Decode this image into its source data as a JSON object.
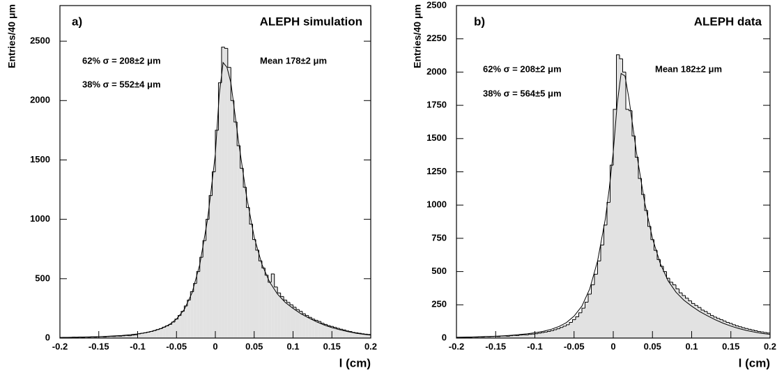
{
  "chart_data": [
    {
      "type": "histogram",
      "label": "a)",
      "title": "ALEPH simulation",
      "ylabel": "Entries/40 μm",
      "xlabel": "l (cm)",
      "annotations": [
        "62%  σ = 208±2 μm",
        "38%  σ = 552±4 μm",
        "Mean 178±2 μm"
      ],
      "color": "#e2e2e2",
      "xlim": [
        -0.2,
        0.2
      ],
      "xticks": [
        -0.2,
        -0.15,
        -0.1,
        -0.05,
        0,
        0.05,
        0.1,
        0.15,
        0.2
      ],
      "ylim": [
        0,
        2800
      ],
      "yticks": [
        0,
        500,
        1000,
        1500,
        2000,
        2500
      ],
      "bins": [
        -0.2,
        -0.196,
        -0.192,
        -0.188,
        -0.184,
        -0.18,
        -0.176,
        -0.172,
        -0.168,
        -0.164,
        -0.16,
        -0.156,
        -0.152,
        -0.148,
        -0.144,
        -0.14,
        -0.136,
        -0.132,
        -0.128,
        -0.124,
        -0.12,
        -0.116,
        -0.112,
        -0.108,
        -0.104,
        -0.1,
        -0.096,
        -0.092,
        -0.088,
        -0.084,
        -0.08,
        -0.076,
        -0.072,
        -0.068,
        -0.064,
        -0.06,
        -0.056,
        -0.052,
        -0.048,
        -0.044,
        -0.04,
        -0.036,
        -0.032,
        -0.028,
        -0.024,
        -0.02,
        -0.016,
        -0.012,
        -0.008,
        -0.004,
        0,
        0.004,
        0.008,
        0.012,
        0.016,
        0.02,
        0.024,
        0.028,
        0.032,
        0.036,
        0.04,
        0.044,
        0.048,
        0.052,
        0.056,
        0.06,
        0.064,
        0.068,
        0.072,
        0.076,
        0.08,
        0.084,
        0.088,
        0.092,
        0.096,
        0.1,
        0.104,
        0.108,
        0.112,
        0.116,
        0.12,
        0.124,
        0.128,
        0.132,
        0.136,
        0.14,
        0.144,
        0.148,
        0.152,
        0.156,
        0.16,
        0.164,
        0.168,
        0.172,
        0.176,
        0.18,
        0.184,
        0.188,
        0.192,
        0.196,
        0.2
      ],
      "values": [
        4,
        6,
        3,
        5,
        7,
        5,
        8,
        6,
        9,
        7,
        10,
        8,
        11,
        12,
        10,
        13,
        15,
        14,
        17,
        16,
        19,
        22,
        20,
        25,
        28,
        36,
        40,
        45,
        50,
        56,
        63,
        72,
        80,
        92,
        103,
        115,
        135,
        160,
        190,
        225,
        270,
        320,
        390,
        460,
        560,
        680,
        820,
        1000,
        1200,
        1400,
        1750,
        2150,
        2450,
        2440,
        2280,
        2000,
        1820,
        1620,
        1430,
        1270,
        1100,
        960,
        830,
        740,
        650,
        590,
        530,
        470,
        540,
        430,
        380,
        350,
        320,
        300,
        280,
        260,
        240,
        225,
        205,
        190,
        175,
        160,
        150,
        140,
        125,
        115,
        105,
        98,
        90,
        82,
        75,
        68,
        60,
        55,
        48,
        44,
        40,
        36,
        33,
        30
      ],
      "fit_x": [
        -0.2,
        -0.19,
        -0.18,
        -0.17,
        -0.16,
        -0.15,
        -0.14,
        -0.13,
        -0.12,
        -0.11,
        -0.1,
        -0.09,
        -0.08,
        -0.07,
        -0.06,
        -0.05,
        -0.04,
        -0.03,
        -0.02,
        -0.01,
        -0.005,
        0,
        0.005,
        0.01,
        0.015,
        0.02,
        0.03,
        0.04,
        0.05,
        0.06,
        0.07,
        0.08,
        0.09,
        0.1,
        0.11,
        0.12,
        0.13,
        0.14,
        0.15,
        0.16,
        0.17,
        0.18,
        0.19,
        0.2
      ],
      "fit_values": [
        5,
        6,
        7,
        9,
        10,
        12,
        15,
        18,
        22,
        28,
        35,
        45,
        60,
        80,
        110,
        160,
        240,
        380,
        620,
        1000,
        1270,
        1550,
        2050,
        2320,
        2280,
        2150,
        1650,
        1200,
        850,
        620,
        470,
        370,
        300,
        250,
        205,
        170,
        138,
        110,
        88,
        70,
        55,
        42,
        32,
        25
      ]
    },
    {
      "type": "histogram",
      "label": "b)",
      "title": "ALEPH data",
      "ylabel": "Entries/40 μm",
      "xlabel": "l (cm)",
      "annotations": [
        "62%  σ = 208±2 μm",
        "38%  σ = 564±5 μm",
        "Mean 182±2 μm"
      ],
      "color": "#e2e2e2",
      "xlim": [
        -0.2,
        0.2
      ],
      "xticks": [
        -0.2,
        -0.15,
        -0.1,
        -0.05,
        0,
        0.05,
        0.1,
        0.15,
        0.2
      ],
      "ylim": [
        0,
        2500
      ],
      "yticks": [
        0,
        250,
        500,
        750,
        1000,
        1250,
        1500,
        1750,
        2000,
        2250,
        2500
      ],
      "bins": [
        -0.2,
        -0.196,
        -0.192,
        -0.188,
        -0.184,
        -0.18,
        -0.176,
        -0.172,
        -0.168,
        -0.164,
        -0.16,
        -0.156,
        -0.152,
        -0.148,
        -0.144,
        -0.14,
        -0.136,
        -0.132,
        -0.128,
        -0.124,
        -0.12,
        -0.116,
        -0.112,
        -0.108,
        -0.104,
        -0.1,
        -0.096,
        -0.092,
        -0.088,
        -0.084,
        -0.08,
        -0.076,
        -0.072,
        -0.068,
        -0.064,
        -0.06,
        -0.056,
        -0.052,
        -0.048,
        -0.044,
        -0.04,
        -0.036,
        -0.032,
        -0.028,
        -0.024,
        -0.02,
        -0.016,
        -0.012,
        -0.008,
        -0.004,
        0,
        0.004,
        0.008,
        0.012,
        0.016,
        0.02,
        0.024,
        0.028,
        0.032,
        0.036,
        0.04,
        0.044,
        0.048,
        0.052,
        0.056,
        0.06,
        0.064,
        0.068,
        0.072,
        0.076,
        0.08,
        0.084,
        0.088,
        0.092,
        0.096,
        0.1,
        0.104,
        0.108,
        0.112,
        0.116,
        0.12,
        0.124,
        0.128,
        0.132,
        0.136,
        0.14,
        0.144,
        0.148,
        0.152,
        0.156,
        0.16,
        0.164,
        0.168,
        0.172,
        0.176,
        0.18,
        0.184,
        0.188,
        0.192,
        0.196,
        0.2
      ],
      "values": [
        3,
        5,
        4,
        6,
        5,
        8,
        7,
        9,
        8,
        11,
        10,
        12,
        13,
        11,
        15,
        16,
        14,
        18,
        20,
        19,
        23,
        25,
        24,
        28,
        30,
        33,
        37,
        41,
        45,
        50,
        56,
        63,
        70,
        80,
        90,
        100,
        118,
        138,
        160,
        190,
        225,
        270,
        330,
        400,
        480,
        580,
        700,
        850,
        1020,
        1300,
        1720,
        2130,
        2100,
        2000,
        1720,
        1710,
        1520,
        1360,
        1200,
        1080,
        960,
        840,
        740,
        660,
        590,
        540,
        500,
        450,
        420,
        400,
        370,
        340,
        320,
        300,
        280,
        260,
        245,
        230,
        210,
        200,
        185,
        170,
        158,
        148,
        138,
        128,
        118,
        110,
        100,
        92,
        85,
        78,
        72,
        66,
        60,
        55,
        50,
        46,
        42,
        38
      ],
      "fit_x": [
        -0.2,
        -0.19,
        -0.18,
        -0.17,
        -0.16,
        -0.15,
        -0.14,
        -0.13,
        -0.12,
        -0.11,
        -0.1,
        -0.09,
        -0.08,
        -0.07,
        -0.06,
        -0.05,
        -0.04,
        -0.03,
        -0.02,
        -0.01,
        -0.005,
        0,
        0.005,
        0.01,
        0.015,
        0.02,
        0.03,
        0.04,
        0.05,
        0.06,
        0.07,
        0.08,
        0.09,
        0.1,
        0.11,
        0.12,
        0.13,
        0.14,
        0.15,
        0.16,
        0.17,
        0.18,
        0.19,
        0.2
      ],
      "fit_values": [
        6,
        7,
        8,
        10,
        12,
        14,
        17,
        21,
        26,
        32,
        40,
        50,
        64,
        85,
        115,
        165,
        240,
        370,
        580,
        900,
        1130,
        1400,
        1760,
        1990,
        1970,
        1800,
        1380,
        1020,
        750,
        560,
        430,
        345,
        285,
        240,
        200,
        168,
        138,
        112,
        90,
        72,
        57,
        45,
        35,
        28
      ]
    }
  ]
}
